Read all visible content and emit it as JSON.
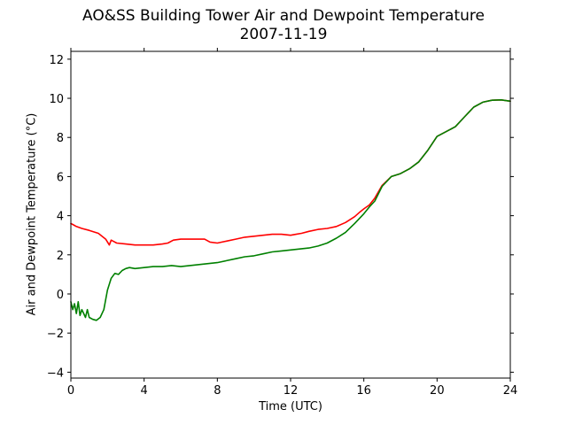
{
  "chart_data": {
    "type": "line",
    "title": "AO&SS Building Tower Air and Dewpoint Temperature",
    "subtitle": "2007-11-19",
    "xlabel": "Time (UTC)",
    "ylabel": "Air and Dewpoint Temperature (°C)",
    "xlim": [
      0,
      24
    ],
    "ylim": [
      -4.3,
      12.4
    ],
    "xticks": [
      0,
      4,
      8,
      12,
      16,
      20,
      24
    ],
    "yticks": [
      -4,
      -2,
      0,
      2,
      4,
      6,
      8,
      10,
      12
    ],
    "grid": false,
    "series": [
      {
        "color": "#ff0000",
        "x": [
          0,
          0.1,
          0.3,
          0.6,
          1.0,
          1.5,
          1.9,
          2.1,
          2.2,
          2.5,
          3.0,
          3.5,
          4.0,
          4.5,
          5.0,
          5.3,
          5.6,
          6.0,
          6.5,
          7.0,
          7.3,
          7.6,
          8.0,
          8.5,
          9.0,
          9.5,
          10.0,
          10.5,
          11.0,
          11.5,
          12.0,
          12.3,
          12.6,
          13.0,
          13.5,
          14.0,
          14.5,
          15.0,
          15.5,
          15.8,
          16.0,
          16.3,
          16.6,
          17.0,
          17.5,
          18.0,
          18.5,
          19.0,
          19.5,
          20.0,
          20.5,
          21.0,
          21.5,
          22.0,
          22.5,
          23.0,
          23.5,
          24.0
        ],
        "y": [
          3.6,
          3.55,
          3.45,
          3.35,
          3.25,
          3.1,
          2.8,
          2.5,
          2.75,
          2.6,
          2.55,
          2.5,
          2.5,
          2.5,
          2.55,
          2.6,
          2.75,
          2.8,
          2.8,
          2.8,
          2.8,
          2.65,
          2.6,
          2.7,
          2.8,
          2.9,
          2.95,
          3.0,
          3.05,
          3.05,
          3.0,
          3.05,
          3.1,
          3.2,
          3.3,
          3.35,
          3.45,
          3.65,
          3.95,
          4.2,
          4.35,
          4.55,
          4.9,
          5.55,
          6.0,
          6.15,
          6.4,
          6.75,
          7.35,
          8.05,
          8.3,
          8.55,
          9.05,
          9.55,
          9.8,
          9.9,
          9.92,
          9.85
        ]
      },
      {
        "color": "#008000",
        "x": [
          0,
          0.1,
          0.2,
          0.3,
          0.4,
          0.5,
          0.6,
          0.7,
          0.8,
          0.9,
          1.0,
          1.2,
          1.4,
          1.6,
          1.8,
          2.0,
          2.2,
          2.4,
          2.6,
          2.8,
          3.0,
          3.2,
          3.5,
          4.0,
          4.5,
          5.0,
          5.5,
          6.0,
          6.5,
          7.0,
          7.5,
          8.0,
          8.5,
          9.0,
          9.5,
          10.0,
          10.5,
          11.0,
          11.5,
          12.0,
          12.5,
          13.0,
          13.5,
          14.0,
          14.5,
          15.0,
          15.5,
          16.0,
          16.3,
          16.6,
          17.0,
          17.5,
          18.0,
          18.5,
          19.0,
          19.5,
          20.0,
          20.5,
          21.0,
          21.5,
          22.0,
          22.5,
          23.0,
          23.5,
          24.0
        ],
        "y": [
          -0.4,
          -0.8,
          -0.5,
          -1.0,
          -0.4,
          -1.1,
          -0.8,
          -1.0,
          -1.2,
          -0.8,
          -1.2,
          -1.3,
          -1.35,
          -1.2,
          -0.8,
          0.2,
          0.8,
          1.05,
          1.0,
          1.2,
          1.3,
          1.35,
          1.3,
          1.35,
          1.4,
          1.4,
          1.45,
          1.4,
          1.45,
          1.5,
          1.55,
          1.6,
          1.7,
          1.8,
          1.9,
          1.95,
          2.05,
          2.15,
          2.2,
          2.25,
          2.3,
          2.35,
          2.45,
          2.6,
          2.85,
          3.15,
          3.6,
          4.1,
          4.45,
          4.75,
          5.5,
          6.0,
          6.15,
          6.4,
          6.75,
          7.35,
          8.05,
          8.3,
          8.55,
          9.05,
          9.55,
          9.8,
          9.9,
          9.92,
          9.85
        ]
      }
    ]
  }
}
